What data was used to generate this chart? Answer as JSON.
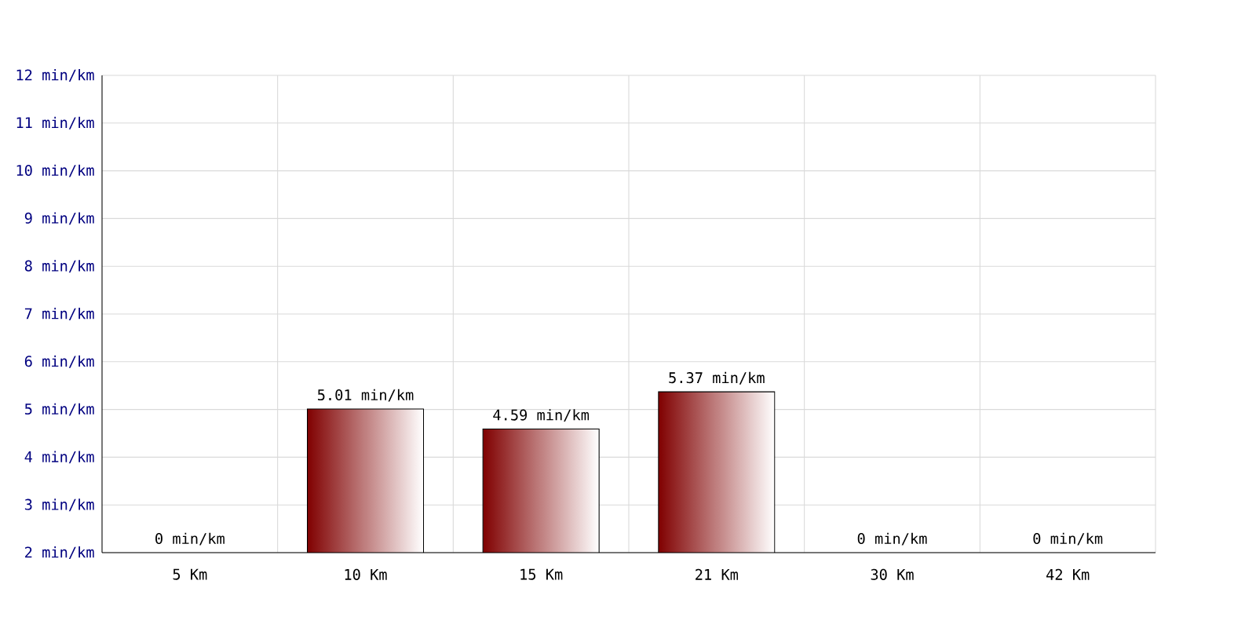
{
  "chart_data": {
    "type": "bar",
    "categories": [
      "5 Km",
      "10 Km",
      "15 Km",
      "21 Km",
      "30 Km",
      "42 Km"
    ],
    "values": [
      null,
      5.01,
      4.59,
      5.37,
      null,
      null
    ],
    "value_labels": [
      "0 min/km",
      "5.01 min/km",
      "4.59 min/km",
      "5.37 min/km",
      "0 min/km",
      "0 min/km"
    ],
    "color": "#800000",
    "ylim": [
      2,
      12
    ],
    "yticks": [
      {
        "value": 2,
        "label": "2 min/km"
      },
      {
        "value": 3,
        "label": "3 min/km"
      },
      {
        "value": 4,
        "label": "4 min/km"
      },
      {
        "value": 5,
        "label": "5 min/km"
      },
      {
        "value": 6,
        "label": "6 min/km"
      },
      {
        "value": 7,
        "label": "7 min/km"
      },
      {
        "value": 8,
        "label": "8 min/km"
      },
      {
        "value": 9,
        "label": "9 min/km"
      },
      {
        "value": 10,
        "label": "10 min/km"
      },
      {
        "value": 11,
        "label": "11 min/km"
      },
      {
        "value": 12,
        "label": "12 min/km"
      }
    ],
    "grid": true
  }
}
